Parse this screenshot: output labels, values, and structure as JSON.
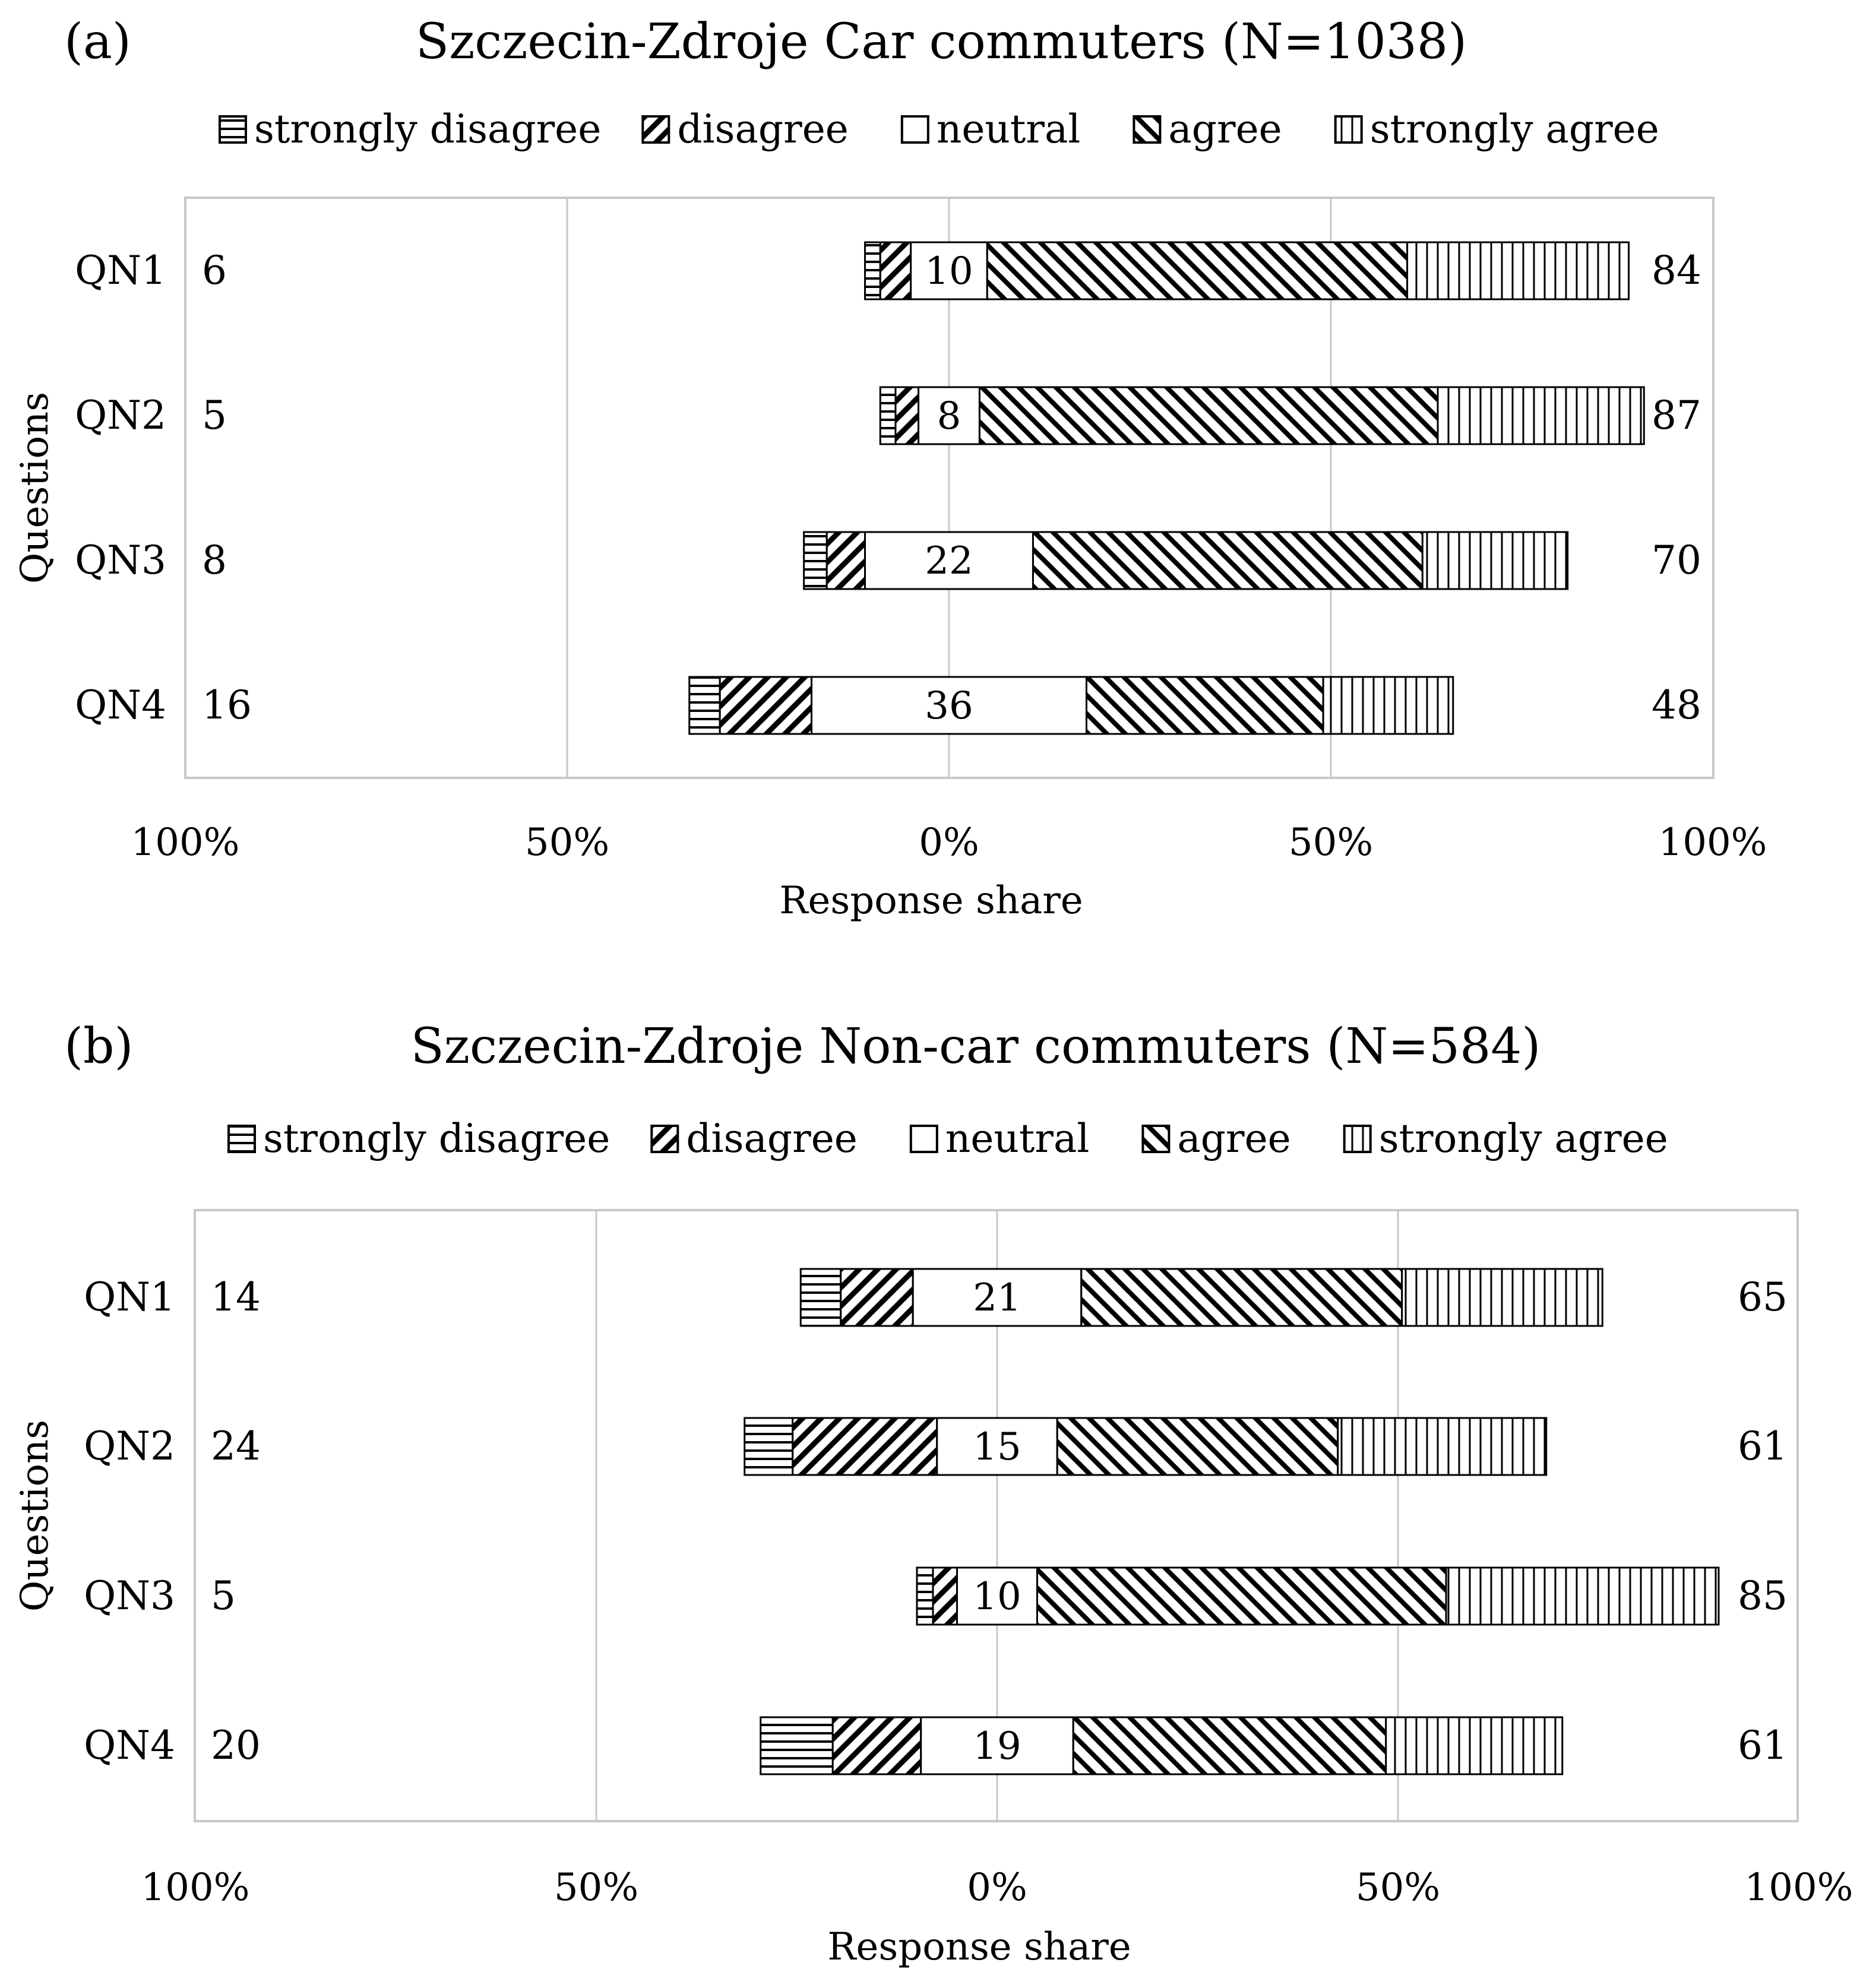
{
  "chart_data": [
    {
      "type": "bar",
      "subtype": "diverging-stacked-horizontal",
      "panel_label": "(a)",
      "title": "Szczecin-Zdroje Car commuters (N=1038)",
      "legend": [
        "strongly disagree",
        "disagree",
        "neutral",
        "agree",
        "strongly agree"
      ],
      "categories": [
        "QN1",
        "QN2",
        "QN3",
        "QN4"
      ],
      "series": [
        {
          "name": "strongly disagree",
          "pattern": "horizontal",
          "values": [
            2,
            2,
            3,
            4
          ]
        },
        {
          "name": "disagree",
          "pattern": "forward-diagonal",
          "values": [
            4,
            3,
            5,
            12
          ]
        },
        {
          "name": "neutral",
          "pattern": "none",
          "values": [
            10,
            8,
            22,
            36
          ]
        },
        {
          "name": "agree",
          "pattern": "backward-diagonal",
          "values": [
            55,
            60,
            51,
            31
          ]
        },
        {
          "name": "strongly agree",
          "pattern": "vertical",
          "values": [
            29,
            27,
            19,
            17
          ]
        }
      ],
      "left_totals": [
        "6",
        "5",
        "8",
        "16"
      ],
      "neutral_labels": [
        "10",
        "8",
        "22",
        "36"
      ],
      "right_totals": [
        "84",
        "87",
        "70",
        "48"
      ],
      "x_ticks": [
        "100%",
        "50%",
        "0%",
        "50%",
        "100%"
      ],
      "xlim": [
        -100,
        100
      ],
      "xlabel": "Response share",
      "ylabel": "Questions",
      "grid": true
    },
    {
      "type": "bar",
      "subtype": "diverging-stacked-horizontal",
      "panel_label": "(b)",
      "title": "Szczecin-Zdroje Non-car commuters (N=584)",
      "legend": [
        "strongly disagree",
        "disagree",
        "neutral",
        "agree",
        "strongly agree"
      ],
      "categories": [
        "QN1",
        "QN2",
        "QN3",
        "QN4"
      ],
      "series": [
        {
          "name": "strongly disagree",
          "pattern": "horizontal",
          "values": [
            5,
            6,
            2,
            9
          ]
        },
        {
          "name": "disagree",
          "pattern": "forward-diagonal",
          "values": [
            9,
            18,
            3,
            11
          ]
        },
        {
          "name": "neutral",
          "pattern": "none",
          "values": [
            21,
            15,
            10,
            19
          ]
        },
        {
          "name": "agree",
          "pattern": "backward-diagonal",
          "values": [
            40,
            35,
            51,
            39
          ]
        },
        {
          "name": "strongly agree",
          "pattern": "vertical",
          "values": [
            25,
            26,
            34,
            22
          ]
        }
      ],
      "left_totals": [
        "14",
        "24",
        "5",
        "20"
      ],
      "neutral_labels": [
        "21",
        "15",
        "10",
        "19"
      ],
      "right_totals": [
        "65",
        "61",
        "85",
        "61"
      ],
      "x_ticks": [
        "100%",
        "50%",
        "0%",
        "50%",
        "100%"
      ],
      "xlim": [
        -100,
        100
      ],
      "xlabel": "Response share",
      "ylabel": "Questions",
      "grid": true
    }
  ]
}
